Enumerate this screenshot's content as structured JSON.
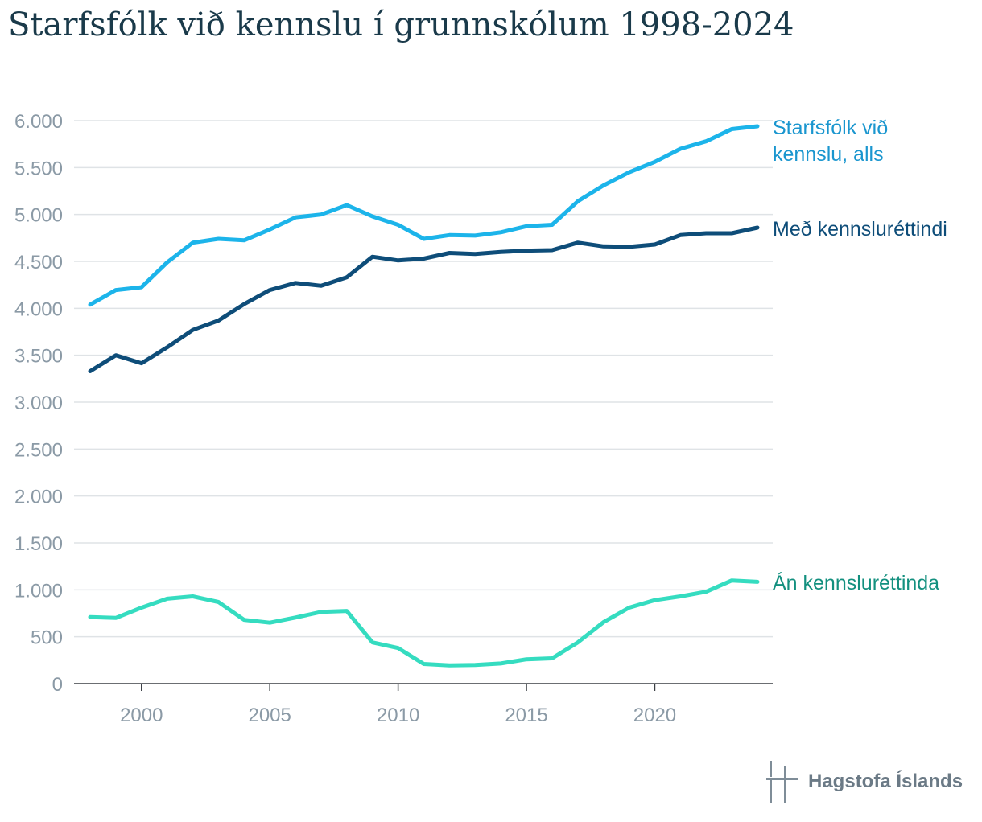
{
  "chart_data": {
    "type": "line",
    "title": "Starfsfólk við kennslu í grunnskólum 1998-2024",
    "xlabel": "",
    "ylabel": "",
    "xlim": [
      1998,
      2024
    ],
    "ylim": [
      0,
      6000
    ],
    "grid": true,
    "y_ticks": [
      0,
      500,
      1000,
      1500,
      2000,
      2500,
      3000,
      3500,
      4000,
      4500,
      5000,
      5500,
      6000
    ],
    "y_tick_labels": [
      "0",
      "500",
      "1.000",
      "1.500",
      "2.000",
      "2.500",
      "3.000",
      "3.500",
      "4.000",
      "4.500",
      "5.000",
      "5.500",
      "6.000"
    ],
    "x_ticks": [
      2000,
      2005,
      2010,
      2015,
      2020
    ],
    "x_tick_labels": [
      "2000",
      "2005",
      "2010",
      "2015",
      "2020"
    ],
    "x": [
      1998,
      1999,
      2000,
      2001,
      2002,
      2003,
      2004,
      2005,
      2006,
      2007,
      2008,
      2009,
      2010,
      2011,
      2012,
      2013,
      2014,
      2015,
      2016,
      2017,
      2018,
      2019,
      2020,
      2021,
      2022,
      2023,
      2024
    ],
    "series": [
      {
        "name": "Starfsfólk við kennslu, alls",
        "label_lines": [
          "Starfsfólk við",
          "kennslu, alls"
        ],
        "color": "#1cb4ea",
        "label_color": "#1a96cf",
        "values": [
          4040,
          4195,
          4225,
          4490,
          4700,
          4740,
          4725,
          4840,
          4970,
          5000,
          5100,
          4980,
          4890,
          4740,
          4780,
          4775,
          4810,
          4875,
          4890,
          5140,
          5310,
          5450,
          5560,
          5700,
          5780,
          5910,
          5940
        ]
      },
      {
        "name": "Með kennsluréttindi",
        "label_lines": [
          "Með kennsluréttindi"
        ],
        "color": "#0e4d79",
        "label_color": "#0e4d79",
        "values": [
          3330,
          3500,
          3415,
          3585,
          3770,
          3870,
          4045,
          4195,
          4270,
          4240,
          4330,
          4550,
          4510,
          4530,
          4590,
          4580,
          4600,
          4615,
          4620,
          4700,
          4660,
          4655,
          4680,
          4780,
          4800,
          4800,
          4860
        ]
      },
      {
        "name": "Án kennsluréttinda",
        "label_lines": [
          "Án kennsluréttinda"
        ],
        "color": "#35dcc0",
        "label_color": "#13907f",
        "values": [
          710,
          700,
          810,
          905,
          930,
          870,
          680,
          650,
          705,
          765,
          775,
          440,
          380,
          210,
          195,
          200,
          215,
          260,
          270,
          440,
          655,
          810,
          890,
          930,
          980,
          1100,
          1085
        ]
      }
    ]
  },
  "footer": {
    "brand": "Hagstofa Íslands",
    "logo_icon": "hagstofa-logo-icon"
  }
}
